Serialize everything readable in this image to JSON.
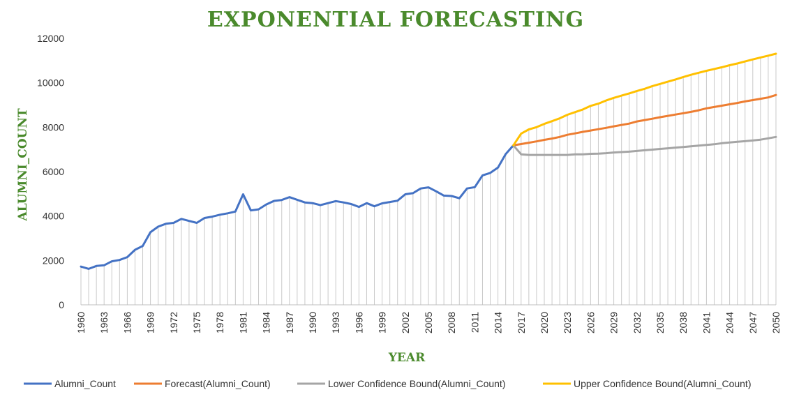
{
  "colors": {
    "alumni": "#4472c4",
    "forecast": "#ed7d31",
    "lower": "#a5a5a5",
    "upper": "#ffc000",
    "title": "#4a8a2c",
    "droplines": "#c9c9c9"
  },
  "chart_data": {
    "type": "line",
    "title": "EXPONENTIAL FORECASTING",
    "xlabel": "YEAR",
    "ylabel": "ALUMNI_COUNT",
    "ylim": [
      0,
      12000
    ],
    "yticks": [
      0,
      2000,
      4000,
      6000,
      8000,
      10000,
      12000
    ],
    "xlim": [
      1960,
      2050
    ],
    "xticks": [
      1960,
      1963,
      1966,
      1969,
      1972,
      1975,
      1978,
      1981,
      1984,
      1987,
      1990,
      1993,
      1996,
      1999,
      2002,
      2005,
      2008,
      2011,
      2014,
      2017,
      2020,
      2023,
      2026,
      2029,
      2032,
      2035,
      2038,
      2041,
      2044,
      2047,
      2050
    ],
    "grid": false,
    "drop_lines": true,
    "legend_position": "bottom",
    "series": [
      {
        "name": "Alumni_Count",
        "x": [
          1960,
          1961,
          1962,
          1963,
          1964,
          1965,
          1966,
          1967,
          1968,
          1969,
          1970,
          1971,
          1972,
          1973,
          1974,
          1975,
          1976,
          1977,
          1978,
          1979,
          1980,
          1981,
          1982,
          1983,
          1984,
          1985,
          1986,
          1987,
          1988,
          1989,
          1990,
          1991,
          1992,
          1993,
          1994,
          1995,
          1996,
          1997,
          1998,
          1999,
          2000,
          2001,
          2002,
          2003,
          2004,
          2005,
          2006,
          2007,
          2008,
          2009,
          2010,
          2011,
          2012,
          2013,
          2014,
          2015,
          2016
        ],
        "values": [
          1720,
          1620,
          1750,
          1780,
          1960,
          2020,
          2150,
          2480,
          2650,
          3270,
          3520,
          3650,
          3690,
          3870,
          3780,
          3690,
          3910,
          3970,
          4060,
          4120,
          4200,
          4980,
          4250,
          4300,
          4520,
          4680,
          4720,
          4850,
          4730,
          4610,
          4580,
          4490,
          4580,
          4670,
          4610,
          4540,
          4410,
          4580,
          4440,
          4570,
          4630,
          4690,
          4980,
          5030,
          5240,
          5290,
          5110,
          4920,
          4900,
          4800,
          5240,
          5300,
          5830,
          5940,
          6180,
          6790,
          7180
        ]
      },
      {
        "name": "Forecast(Alumni_Count)",
        "x": [
          2016,
          2017,
          2018,
          2019,
          2020,
          2021,
          2022,
          2023,
          2024,
          2025,
          2026,
          2027,
          2028,
          2029,
          2030,
          2031,
          2032,
          2033,
          2034,
          2035,
          2036,
          2037,
          2038,
          2039,
          2040,
          2041,
          2042,
          2043,
          2044,
          2045,
          2046,
          2047,
          2048,
          2049,
          2050
        ],
        "values": [
          7180,
          7240,
          7300,
          7360,
          7430,
          7490,
          7560,
          7660,
          7720,
          7790,
          7850,
          7910,
          7970,
          8040,
          8100,
          8160,
          8260,
          8320,
          8380,
          8450,
          8510,
          8570,
          8630,
          8690,
          8760,
          8850,
          8910,
          8970,
          9030,
          9090,
          9160,
          9220,
          9280,
          9340,
          9450
        ]
      },
      {
        "name": "Lower Confidence Bound(Alumni_Count)",
        "x": [
          2016,
          2017,
          2018,
          2019,
          2020,
          2021,
          2022,
          2023,
          2024,
          2025,
          2026,
          2027,
          2028,
          2029,
          2030,
          2031,
          2032,
          2033,
          2034,
          2035,
          2036,
          2037,
          2038,
          2039,
          2040,
          2041,
          2042,
          2043,
          2044,
          2045,
          2046,
          2047,
          2048,
          2049,
          2050
        ],
        "values": [
          7180,
          6780,
          6750,
          6750,
          6750,
          6750,
          6750,
          6750,
          6780,
          6780,
          6800,
          6810,
          6830,
          6860,
          6880,
          6900,
          6930,
          6960,
          6990,
          7020,
          7050,
          7080,
          7110,
          7140,
          7170,
          7200,
          7230,
          7280,
          7310,
          7340,
          7370,
          7400,
          7440,
          7500,
          7560
        ]
      },
      {
        "name": "Upper Confidence Bound(Alumni_Count)",
        "x": [
          2016,
          2017,
          2018,
          2019,
          2020,
          2021,
          2022,
          2023,
          2024,
          2025,
          2026,
          2027,
          2028,
          2029,
          2030,
          2031,
          2032,
          2033,
          2034,
          2035,
          2036,
          2037,
          2038,
          2039,
          2040,
          2041,
          2042,
          2043,
          2044,
          2045,
          2046,
          2047,
          2048,
          2049,
          2050
        ],
        "values": [
          7180,
          7710,
          7900,
          8000,
          8150,
          8270,
          8400,
          8560,
          8680,
          8800,
          8960,
          9060,
          9200,
          9320,
          9420,
          9520,
          9630,
          9730,
          9850,
          9950,
          10050,
          10150,
          10260,
          10360,
          10450,
          10540,
          10620,
          10700,
          10790,
          10870,
          10960,
          11050,
          11140,
          11220,
          11310
        ]
      }
    ]
  }
}
